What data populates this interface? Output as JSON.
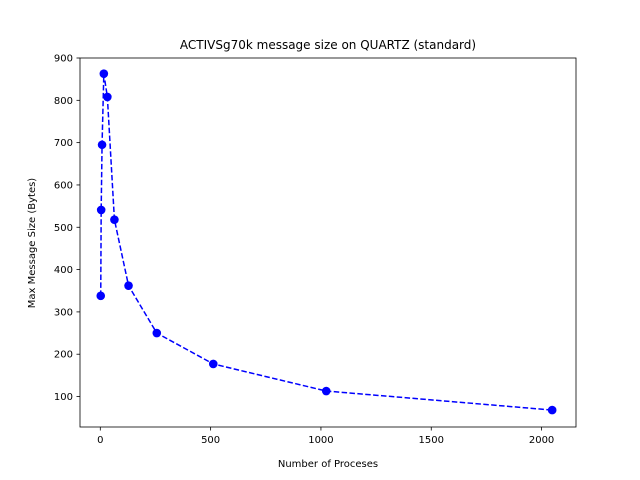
{
  "chart_data": {
    "type": "line",
    "title": "ACTIVSg70k message size on QUARTZ (standard)",
    "xlabel": "Number of Proceses",
    "ylabel": "Max Message Size (Bytes)",
    "xlim": [
      -92,
      2156
    ],
    "ylim": [
      28,
      900
    ],
    "xticks": [
      0,
      500,
      1000,
      1500,
      2000
    ],
    "yticks": [
      100,
      200,
      300,
      400,
      500,
      600,
      700,
      800,
      900
    ],
    "grid": false,
    "legend": "none",
    "series": [
      {
        "color": "#0000ff",
        "line_style": "dashed",
        "marker": "circle",
        "x": [
          2,
          4,
          8,
          16,
          32,
          64,
          128,
          256,
          512,
          1024,
          2048
        ],
        "y": [
          338,
          541,
          695,
          863,
          808,
          518,
          362,
          250,
          177,
          113,
          68
        ]
      }
    ]
  }
}
